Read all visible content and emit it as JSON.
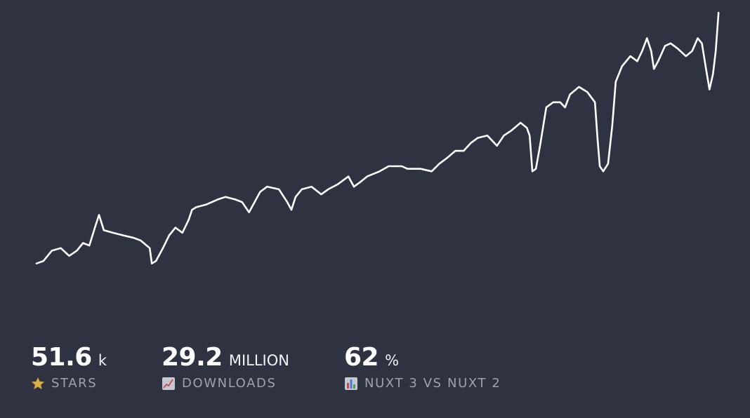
{
  "stats": [
    {
      "value": "51.6",
      "unit": "k",
      "label": "STARS",
      "icon": "star-icon"
    },
    {
      "value": "29.2",
      "unit": "MILLION",
      "label": "DOWNLOADS",
      "icon": "chart-increasing-icon"
    },
    {
      "value": "62",
      "unit": "%",
      "label": "NUXT 3 VS NUXT 2",
      "icon": "bar-chart-icon"
    }
  ],
  "colors": {
    "background": "#2e3241",
    "line": "#ffffff",
    "label": "#9ea2b0",
    "star": "#d8b04c"
  },
  "chart_data": {
    "type": "line",
    "title": "",
    "xlabel": "",
    "ylabel": "",
    "grid": false,
    "legend": "none",
    "xlim": [
      0,
      100
    ],
    "ylim": [
      0,
      100
    ],
    "series": [
      {
        "points": [
          [
            0,
            2
          ],
          [
            1.0,
            3
          ],
          [
            2.2,
            7
          ],
          [
            3.5,
            8
          ],
          [
            4.7,
            5
          ],
          [
            5.8,
            7
          ],
          [
            6.7,
            10
          ],
          [
            7.6,
            9
          ],
          [
            8.4,
            16
          ],
          [
            9.0,
            21
          ],
          [
            9.7,
            15
          ],
          [
            11,
            14
          ],
          [
            12.5,
            13
          ],
          [
            14,
            12
          ],
          [
            15,
            11
          ],
          [
            16.3,
            8
          ],
          [
            16.6,
            2
          ],
          [
            17.2,
            3
          ],
          [
            18.2,
            8
          ],
          [
            19.1,
            13
          ],
          [
            20,
            16
          ],
          [
            21,
            14
          ],
          [
            21.9,
            19
          ],
          [
            22.4,
            23
          ],
          [
            23,
            24
          ],
          [
            24.4,
            25
          ],
          [
            26.1,
            27
          ],
          [
            27.2,
            28
          ],
          [
            28.6,
            27
          ],
          [
            29.6,
            26
          ],
          [
            30.6,
            22
          ],
          [
            31.2,
            25
          ],
          [
            32.2,
            30
          ],
          [
            33.2,
            32
          ],
          [
            34.9,
            31
          ],
          [
            36.1,
            26
          ],
          [
            36.7,
            23
          ],
          [
            37.3,
            28
          ],
          [
            38.2,
            31
          ],
          [
            39.6,
            32
          ],
          [
            41,
            29
          ],
          [
            42,
            31
          ],
          [
            43.4,
            33
          ],
          [
            44.9,
            36
          ],
          [
            45.7,
            32
          ],
          [
            46.7,
            34
          ],
          [
            47.6,
            36
          ],
          [
            49.4,
            38
          ],
          [
            50.7,
            40
          ],
          [
            52.6,
            40
          ],
          [
            53.4,
            39
          ],
          [
            55.3,
            39
          ],
          [
            56.9,
            38
          ],
          [
            58,
            41
          ],
          [
            59,
            43
          ],
          [
            60.3,
            46
          ],
          [
            61.5,
            46
          ],
          [
            62.5,
            49
          ],
          [
            63.5,
            51
          ],
          [
            64.9,
            52
          ],
          [
            66.3,
            48
          ],
          [
            67.3,
            52
          ],
          [
            68.4,
            54
          ],
          [
            69.7,
            57
          ],
          [
            70.6,
            55
          ],
          [
            71,
            52
          ],
          [
            71.4,
            38
          ],
          [
            71.9,
            39
          ],
          [
            72.5,
            48
          ],
          [
            73.4,
            63
          ],
          [
            74.4,
            65
          ],
          [
            75.4,
            65
          ],
          [
            76.1,
            63
          ],
          [
            76.8,
            68
          ],
          [
            78.1,
            71
          ],
          [
            79.3,
            69
          ],
          [
            80.4,
            65
          ],
          [
            80.8,
            50
          ],
          [
            81.1,
            40
          ],
          [
            81.6,
            38
          ],
          [
            82.3,
            41
          ],
          [
            82.9,
            56
          ],
          [
            83.4,
            73
          ],
          [
            84.3,
            79
          ],
          [
            85.5,
            83
          ],
          [
            86.5,
            81
          ],
          [
            87.2,
            85
          ],
          [
            87.9,
            90
          ],
          [
            88.5,
            85
          ],
          [
            88.9,
            78
          ],
          [
            89.5,
            81
          ],
          [
            90.5,
            87
          ],
          [
            91.3,
            88
          ],
          [
            92.3,
            86
          ],
          [
            93.5,
            83
          ],
          [
            94.4,
            85
          ],
          [
            95.2,
            90
          ],
          [
            95.8,
            88
          ],
          [
            96.4,
            78
          ],
          [
            96.9,
            70
          ],
          [
            97.4,
            76
          ],
          [
            97.8,
            85
          ],
          [
            98.2,
            100
          ]
        ]
      }
    ]
  }
}
